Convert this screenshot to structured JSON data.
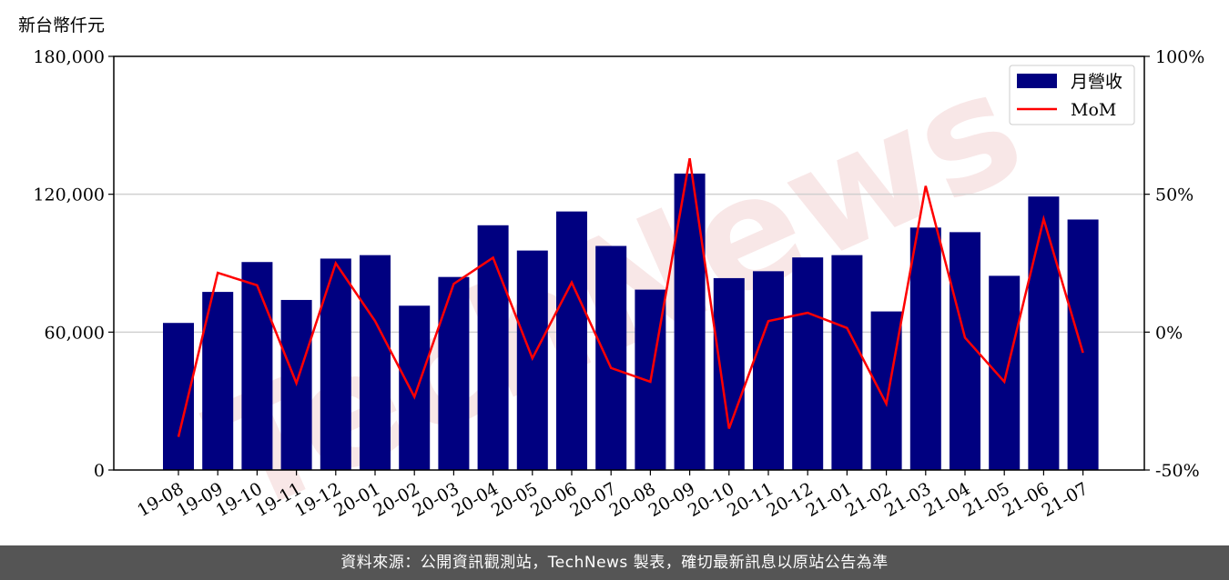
{
  "unit_label": "新台幣仟元",
  "watermark": "TechNews",
  "footer": "資料來源：公開資訊觀測站，TechNews 製表，確切最新訊息以原站公告為準",
  "colors": {
    "bar": "#000080",
    "line": "#ff0000",
    "grid": "#d0d0d0"
  },
  "chart_data": {
    "type": "bar",
    "categories": [
      "19-08",
      "19-09",
      "19-10",
      "19-11",
      "19-12",
      "20-01",
      "20-02",
      "20-03",
      "20-04",
      "20-05",
      "20-06",
      "20-07",
      "20-08",
      "20-09",
      "20-10",
      "20-11",
      "20-12",
      "21-01",
      "21-02",
      "21-03",
      "21-04",
      "21-05",
      "21-06",
      "21-07"
    ],
    "series": [
      {
        "name": "月營收",
        "type": "bar",
        "axis": "left",
        "values": [
          64000,
          77500,
          90500,
          74000,
          92000,
          93500,
          71500,
          84000,
          106500,
          95500,
          112500,
          97500,
          78500,
          129000,
          83500,
          86500,
          92500,
          93500,
          69000,
          105500,
          103500,
          84500,
          119000,
          109000
        ]
      },
      {
        "name": "MoM",
        "type": "line",
        "axis": "right",
        "values": [
          -38,
          21.5,
          17,
          -18.5,
          25,
          4,
          -23.5,
          17.5,
          27,
          -9.5,
          18,
          -13,
          -18,
          63,
          -35,
          4,
          7,
          1.5,
          -26,
          53,
          -2,
          -18,
          41,
          -7.5
        ]
      }
    ],
    "y_left": {
      "range": [
        0,
        180000
      ],
      "ticks": [
        "0",
        "60,000",
        "120,000",
        "180,000"
      ],
      "tick_values": [
        0,
        60000,
        120000,
        180000
      ]
    },
    "y_right": {
      "range": [
        -50,
        100
      ],
      "ticks": [
        "-50%",
        "0%",
        "50%",
        "100%"
      ],
      "tick_values": [
        -50,
        0,
        50,
        100
      ]
    },
    "grid": "horizontal",
    "legend": "top-right"
  }
}
